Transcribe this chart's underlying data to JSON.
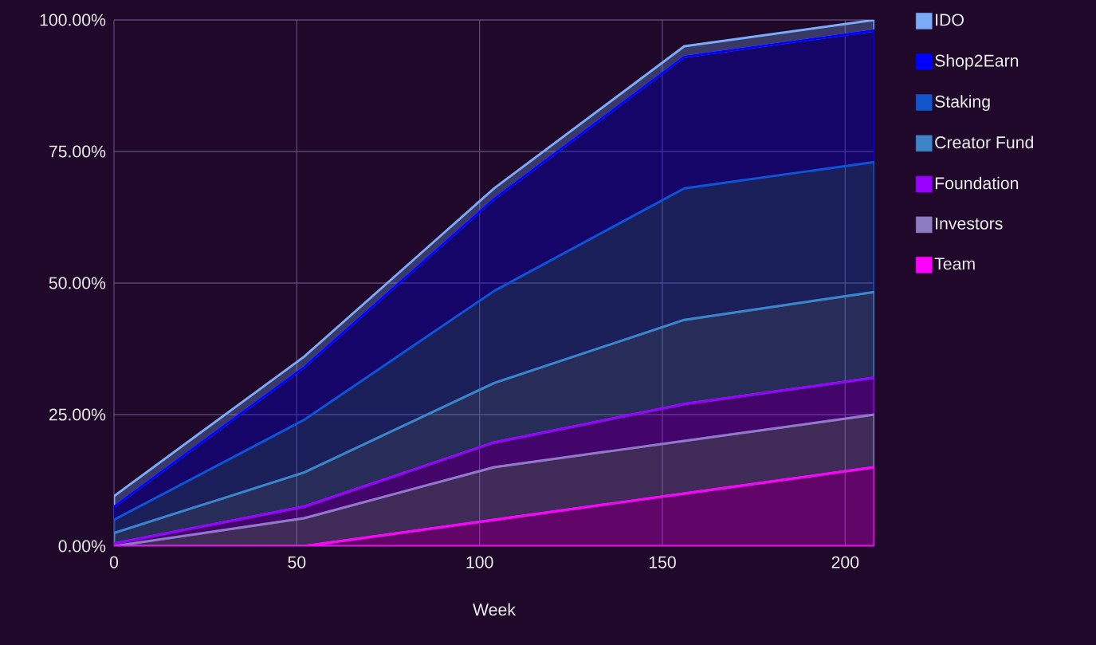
{
  "chart_data": {
    "type": "area",
    "xlabel": "Week",
    "stacked": true,
    "grid": true,
    "legend": "top right",
    "x": [
      0,
      52,
      104,
      156,
      208
    ],
    "xlim": [
      0,
      208
    ],
    "xticks": [
      0,
      50,
      100,
      150,
      200
    ],
    "ylim": [
      0,
      100
    ],
    "yticks": [
      {
        "value": 0,
        "label": "0.00%"
      },
      {
        "value": 25,
        "label": "25.00%"
      },
      {
        "value": 50,
        "label": "50.00%"
      },
      {
        "value": 75,
        "label": "75.00%"
      },
      {
        "value": 100,
        "label": "100.00%"
      }
    ],
    "series": [
      {
        "name": "Team",
        "color": "#ff00ff",
        "values": [
          0,
          0,
          5,
          10,
          15
        ]
      },
      {
        "name": "Investors",
        "color": "#8e7cc3",
        "values": [
          0,
          5.3,
          10,
          10,
          10
        ]
      },
      {
        "name": "Foundation",
        "color": "#9900ff",
        "values": [
          0.5,
          2.2,
          4.7,
          7,
          7
        ]
      },
      {
        "name": "Creator Fund",
        "color": "#3d85c6",
        "values": [
          2,
          6.5,
          11.3,
          16,
          16.3
        ]
      },
      {
        "name": "Staking",
        "color": "#1155cc",
        "values": [
          2.5,
          10,
          17.5,
          25,
          24.7
        ]
      },
      {
        "name": "Shop2Earn",
        "color": "#0000ff",
        "values": [
          2.5,
          10,
          17.5,
          25,
          25
        ]
      },
      {
        "name": "IDO",
        "color": "#7baaf7",
        "values": [
          2,
          2,
          2,
          2,
          2
        ]
      }
    ]
  }
}
